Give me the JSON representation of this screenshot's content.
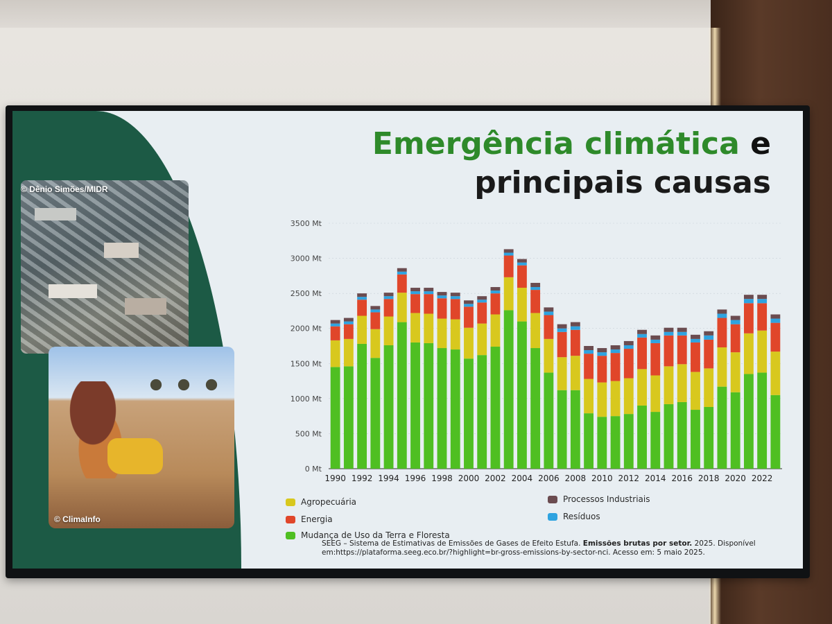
{
  "slide": {
    "title_line1": "Emergência climática",
    "title_line1_end": "e",
    "title_line2": "principais causas",
    "photo1_credit": "© Dênio Simões/MIDR",
    "photo2_credit": "© ClimaInfo",
    "source_text": "SEEG – Sistema de Estimativas de Emissões de Gases de Efeito Estufa.",
    "source_bold": "Emissões brutas por setor.",
    "source_rest": "2025. Disponível em:https://plataforma.seeg.eco.br/?highlight=br-gross-emissions-by-sector-nci. Acesso em: 5 maio 2025."
  },
  "colors": {
    "panel_green": "#1c5a45",
    "Mudança de Uso da Terra e Floresta": "#4fbf22",
    "Agropecuária": "#d8c81e",
    "Energia": "#e0462a",
    "Resíduos": "#2ea3e0",
    "Processos Industriais": "#6b4c50"
  },
  "chart_data": {
    "type": "bar",
    "stacked": true,
    "ylim": [
      0,
      3500
    ],
    "yticks": [
      "0 Mt",
      "500 Mt",
      "1000 Mt",
      "1500 Mt",
      "2000 Mt",
      "2500 Mt",
      "3000 Mt",
      "3500 Mt"
    ],
    "categories": [
      "1990",
      "1991",
      "1992",
      "1993",
      "1994",
      "1995",
      "1996",
      "1997",
      "1998",
      "1999",
      "2000",
      "2001",
      "2002",
      "2003",
      "2004",
      "2005",
      "2006",
      "2007",
      "2008",
      "2009",
      "2010",
      "2011",
      "2012",
      "2013",
      "2014",
      "2015",
      "2016",
      "2017",
      "2018",
      "2019",
      "2020",
      "2021",
      "2022",
      "2023"
    ],
    "xtick_labels": [
      "1990",
      "1992",
      "1994",
      "1996",
      "1998",
      "2000",
      "2002",
      "2004",
      "2006",
      "2008",
      "2010",
      "2012",
      "2014",
      "2016",
      "2018",
      "2020",
      "2022"
    ],
    "series": [
      {
        "name": "Mudança de Uso da Terra e Floresta",
        "values": [
          1450,
          1460,
          1780,
          1580,
          1760,
          2090,
          1800,
          1790,
          1720,
          1700,
          1570,
          1620,
          1740,
          2260,
          2100,
          1720,
          1370,
          1120,
          1120,
          790,
          740,
          750,
          780,
          900,
          810,
          920,
          950,
          840,
          880,
          1170,
          1090,
          1350,
          1370,
          1050
        ]
      },
      {
        "name": "Agropecuária",
        "values": [
          380,
          390,
          400,
          410,
          410,
          420,
          420,
          420,
          420,
          430,
          440,
          450,
          460,
          470,
          480,
          500,
          480,
          470,
          490,
          490,
          490,
          500,
          510,
          520,
          520,
          540,
          540,
          540,
          550,
          560,
          570,
          580,
          600,
          620
        ]
      },
      {
        "name": "Energia",
        "values": [
          200,
          210,
          230,
          240,
          250,
          260,
          270,
          280,
          290,
          290,
          300,
          300,
          300,
          310,
          320,
          330,
          340,
          360,
          370,
          360,
          380,
          400,
          420,
          450,
          460,
          440,
          410,
          420,
          410,
          420,
          400,
          430,
          390,
          410
        ]
      },
      {
        "name": "Resíduos",
        "values": [
          40,
          40,
          40,
          40,
          40,
          40,
          40,
          40,
          40,
          40,
          40,
          40,
          40,
          40,
          40,
          40,
          50,
          50,
          50,
          50,
          50,
          50,
          50,
          50,
          50,
          50,
          50,
          50,
          60,
          60,
          60,
          60,
          60,
          60
        ]
      },
      {
        "name": "Processos Industriais",
        "values": [
          50,
          50,
          50,
          50,
          50,
          50,
          50,
          50,
          50,
          50,
          50,
          50,
          50,
          50,
          50,
          60,
          60,
          60,
          60,
          60,
          60,
          60,
          60,
          60,
          60,
          60,
          60,
          60,
          60,
          60,
          60,
          60,
          60,
          60
        ]
      }
    ],
    "legend": [
      {
        "name": "Agropecuária"
      },
      {
        "name": "Energia"
      },
      {
        "name": "Mudança de Uso da Terra e Floresta"
      },
      {
        "name": "Processos Industriais"
      },
      {
        "name": "Resíduos"
      }
    ],
    "grid": true,
    "legend_position": "bottom"
  }
}
